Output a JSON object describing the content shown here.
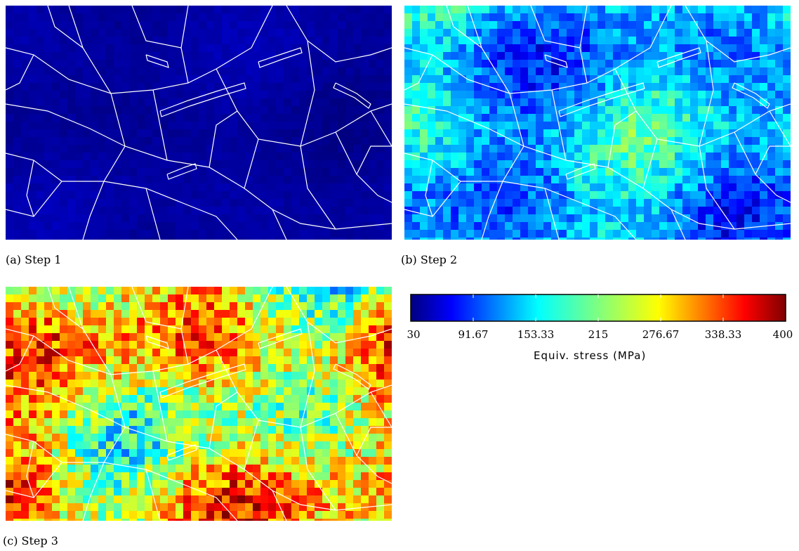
{
  "panels": [
    {
      "caption": "(a) Step 1",
      "level": 0.03
    },
    {
      "caption": "(b) Step 2",
      "level": 0.3
    },
    {
      "caption": "(c) Step 3",
      "level": 0.62
    }
  ],
  "colorbar": {
    "title": "Equiv. stress (MPa)",
    "min": 30,
    "max": 400,
    "ticks": [
      "30",
      "91.67",
      "153.33",
      "215",
      "276.67",
      "338.33",
      "400"
    ],
    "colormap": "jet"
  }
}
